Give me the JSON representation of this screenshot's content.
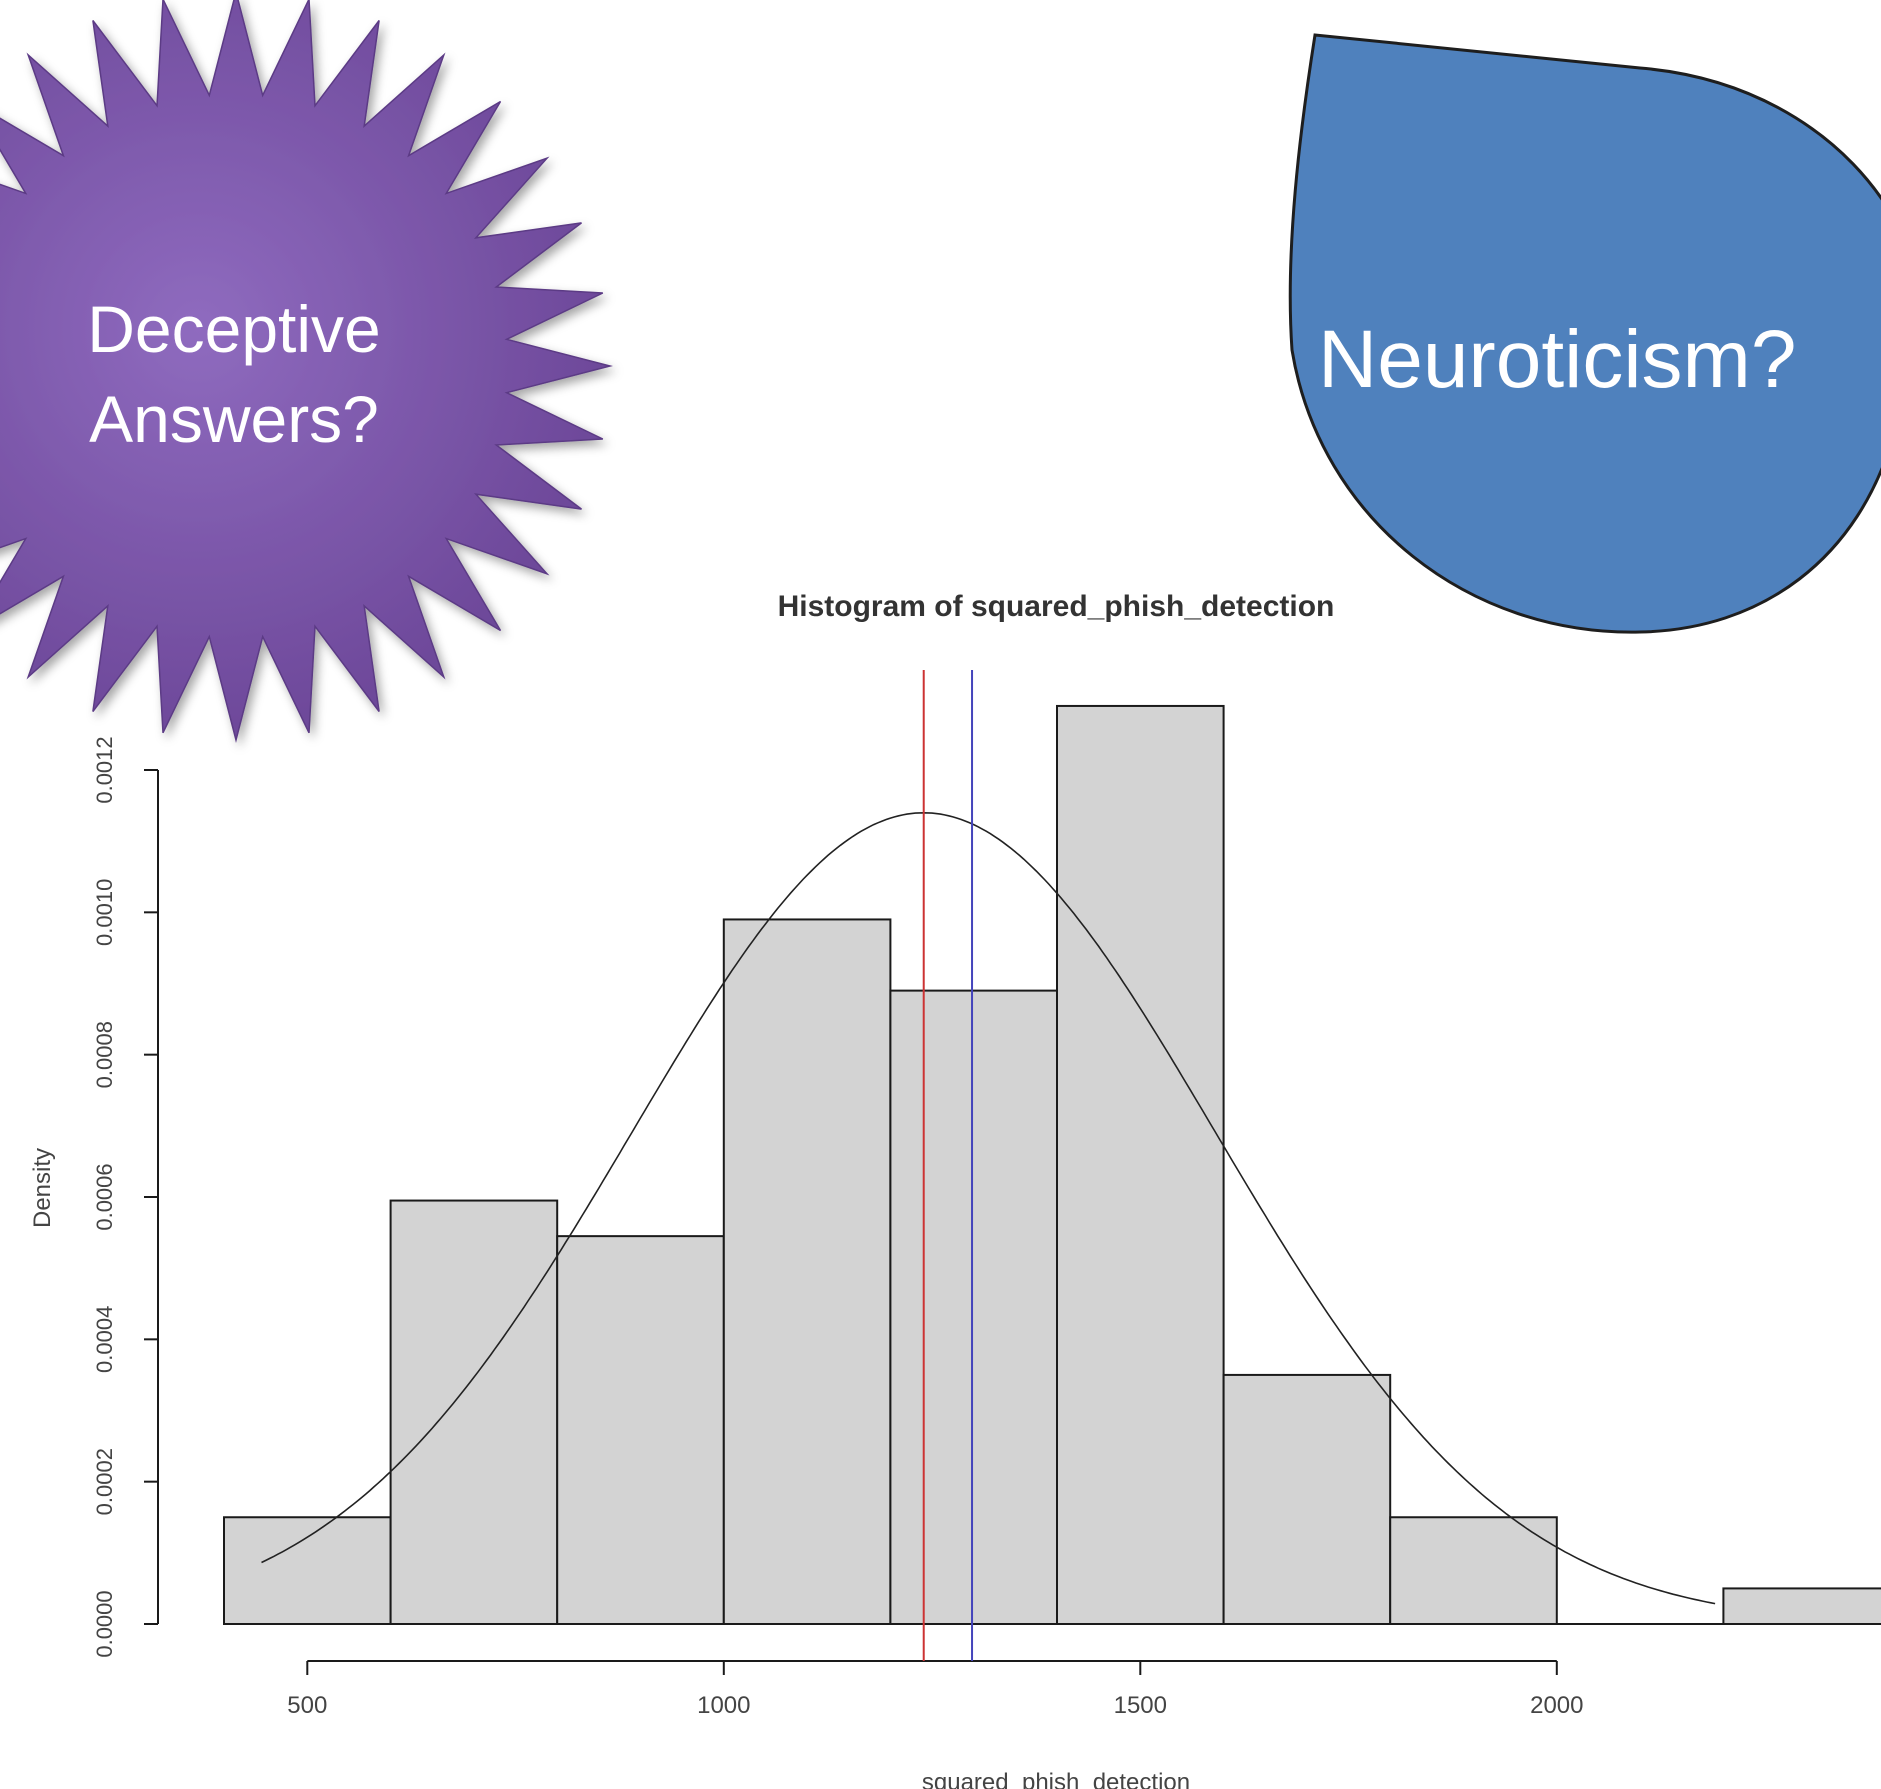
{
  "callouts": {
    "starburst": {
      "line1": "Deceptive",
      "line2": "Answers?",
      "color": "#7d56aa"
    },
    "teardrop": {
      "text": "Neuroticism?",
      "color": "#4f81bd"
    }
  },
  "chart_data": {
    "type": "histogram",
    "title": "Histogram of squared_phish_detection",
    "xlabel": "squared_phish_detection",
    "ylabel": "Density",
    "xlim": [
      400,
      2400
    ],
    "ylim": [
      0,
      0.0012
    ],
    "x_ticks": [
      500,
      1000,
      1500,
      2000
    ],
    "x_tick_labels": [
      "500",
      "1000",
      "1500",
      "2000"
    ],
    "y_ticks": [
      0,
      0.0002,
      0.0004,
      0.0006,
      0.0008,
      0.001,
      0.0012
    ],
    "y_tick_labels": [
      "0.0000",
      "0.0002",
      "0.0004",
      "0.0006",
      "0.0008",
      "0.0010",
      "0.0012"
    ],
    "bins": [
      {
        "x0": 400,
        "x1": 600,
        "density": 0.00015
      },
      {
        "x0": 600,
        "x1": 800,
        "density": 0.000595
      },
      {
        "x0": 800,
        "x1": 1000,
        "density": 0.000545
      },
      {
        "x0": 1000,
        "x1": 1200,
        "density": 0.00099
      },
      {
        "x0": 1200,
        "x1": 1400,
        "density": 0.00089
      },
      {
        "x0": 1400,
        "x1": 1600,
        "density": 0.00129
      },
      {
        "x0": 1600,
        "x1": 1800,
        "density": 0.00035
      },
      {
        "x0": 1800,
        "x1": 2000,
        "density": 0.00015
      },
      {
        "x0": 2000,
        "x1": 2200,
        "density": 0
      },
      {
        "x0": 2200,
        "x1": 2400,
        "density": 5e-05
      }
    ],
    "normal_curve": {
      "mean": 1240,
      "sd": 350,
      "x_from": 445,
      "x_to": 2190
    },
    "vlines": [
      {
        "x": 1240,
        "color": "#cc3333"
      },
      {
        "x": 1298,
        "color": "#4444bb"
      }
    ],
    "bar_fill": "#d3d3d3",
    "grid": false
  }
}
